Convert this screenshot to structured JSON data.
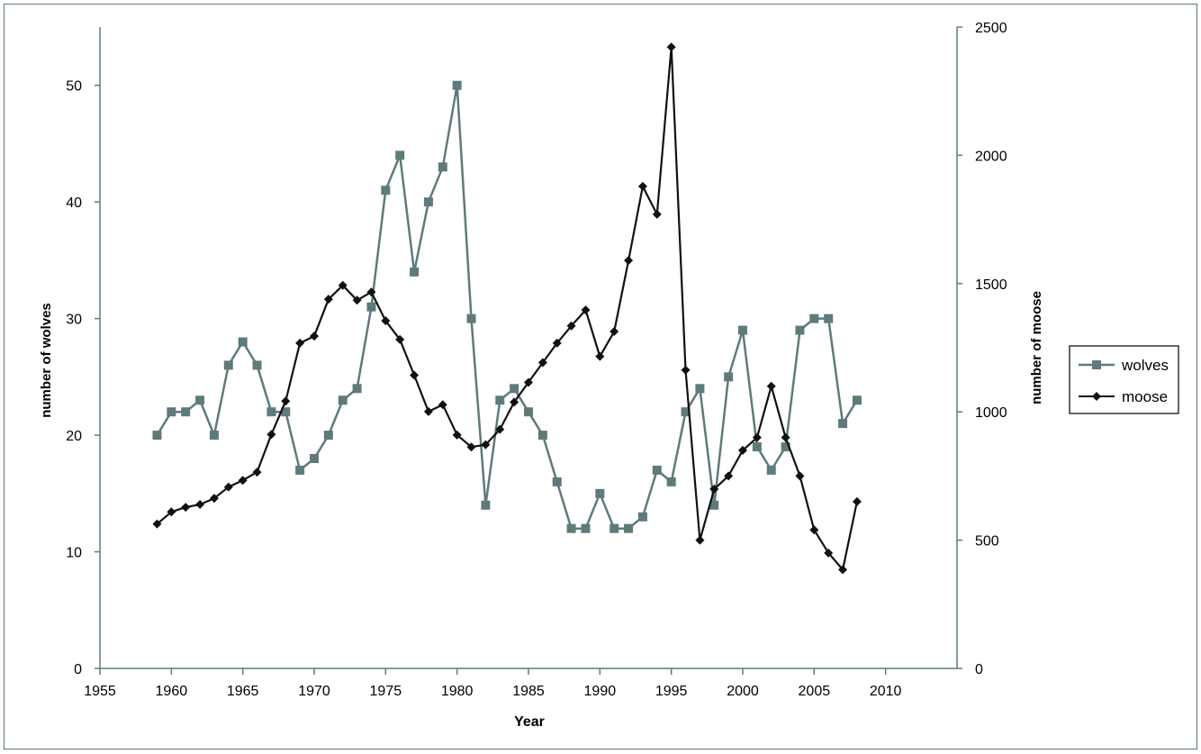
{
  "chart_data": {
    "type": "line",
    "xlabel": "Year",
    "ylabel_left": "number of wolves",
    "ylabel_right": "number of moose",
    "xlim": [
      1955,
      2015
    ],
    "xticks": [
      1955,
      1960,
      1965,
      1970,
      1975,
      1980,
      1985,
      1990,
      1995,
      2000,
      2005,
      2010
    ],
    "ylim_left": [
      0,
      55
    ],
    "yticks_left": [
      0,
      10,
      20,
      30,
      40,
      50
    ],
    "ylim_right": [
      0,
      2500
    ],
    "yticks_right": [
      0,
      500,
      1000,
      1500,
      2000,
      2500
    ],
    "legend_position": "right",
    "grid": false,
    "series": [
      {
        "name": "wolves",
        "axis": "left",
        "color": "#5f7a7a",
        "marker": "square",
        "x": [
          1959,
          1960,
          1961,
          1962,
          1963,
          1964,
          1965,
          1966,
          1967,
          1968,
          1969,
          1970,
          1971,
          1972,
          1973,
          1974,
          1975,
          1976,
          1977,
          1978,
          1979,
          1980,
          1981,
          1982,
          1983,
          1984,
          1985,
          1986,
          1987,
          1988,
          1989,
          1990,
          1991,
          1992,
          1993,
          1994,
          1995,
          1996,
          1997,
          1998,
          1999,
          2000,
          2001,
          2002,
          2003,
          2004,
          2005,
          2006,
          2007,
          2008
        ],
        "values": [
          20,
          22,
          22,
          23,
          20,
          26,
          28,
          26,
          22,
          22,
          17,
          18,
          20,
          23,
          24,
          31,
          41,
          44,
          34,
          40,
          43,
          50,
          30,
          14,
          23,
          24,
          22,
          20,
          16,
          12,
          12,
          15,
          12,
          12,
          13,
          17,
          16,
          22,
          24,
          14,
          25,
          29,
          19,
          17,
          19,
          29,
          30,
          30,
          21,
          23
        ]
      },
      {
        "name": "moose",
        "axis": "right",
        "color": "#111111",
        "marker": "diamond",
        "x": [
          1959,
          1960,
          1961,
          1962,
          1963,
          1964,
          1965,
          1966,
          1967,
          1968,
          1969,
          1970,
          1971,
          1972,
          1973,
          1974,
          1975,
          1976,
          1977,
          1978,
          1979,
          1980,
          1981,
          1982,
          1983,
          1984,
          1985,
          1986,
          1987,
          1988,
          1989,
          1990,
          1991,
          1992,
          1993,
          1994,
          1995,
          1996,
          1997,
          1998,
          1999,
          2000,
          2001,
          2002,
          2003,
          2004,
          2005,
          2006,
          2007,
          2008
        ],
        "values": [
          563,
          610,
          628,
          639,
          663,
          707,
          733,
          765,
          912,
          1042,
          1268,
          1295,
          1439,
          1493,
          1435,
          1467,
          1355,
          1282,
          1143,
          1001,
          1028,
          910,
          863,
          872,
          932,
          1038,
          1115,
          1192,
          1268,
          1335,
          1397,
          1216,
          1313,
          1590,
          1879,
          1770,
          2422,
          1163,
          500,
          699,
          750,
          850,
          900,
          1100,
          900,
          750,
          540,
          450,
          385,
          650
        ]
      }
    ]
  }
}
